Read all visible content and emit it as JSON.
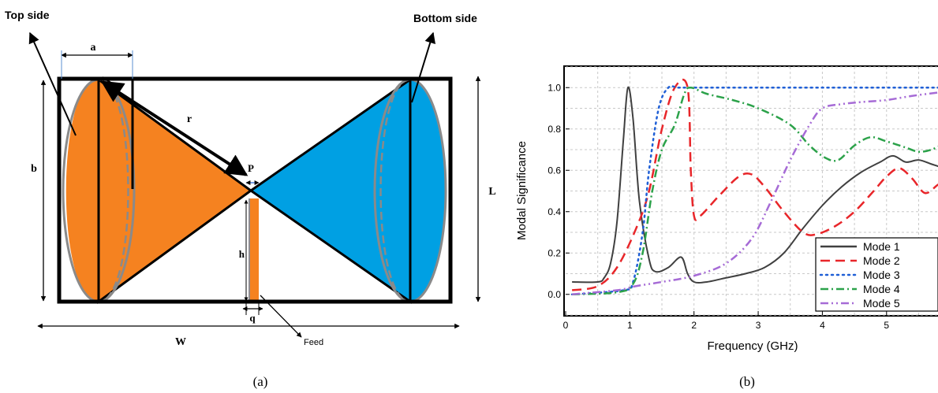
{
  "figure_a": {
    "caption": "(a)",
    "top_side_label": "Top side",
    "bottom_side_label": "Bottom side",
    "dim_a": "a",
    "dim_b": "b",
    "dim_r": "r",
    "dim_p": "P",
    "dim_h": "h",
    "dim_q": "q",
    "dim_L": "L",
    "dim_W": "W",
    "feed_label": "Feed",
    "colors": {
      "top_patch": "#f58220",
      "bottom_patch": "#00a0e3",
      "outline": "#000000",
      "dash": "#8a8a8a"
    }
  },
  "figure_b": {
    "caption": "(b)",
    "chart_data": {
      "type": "line",
      "title": "",
      "xlabel": "Frequency (GHz)",
      "ylabel": "Modal Significance",
      "xlim": [
        0,
        5.9
      ],
      "ylim": [
        -0.1,
        1.1
      ],
      "xticks": [
        0,
        1,
        2,
        3,
        4,
        5
      ],
      "yticks": [
        0.0,
        0.2,
        0.4,
        0.6,
        0.8,
        1.0
      ],
      "ytick_labels": [
        "0.0",
        "0.2",
        "0.4",
        "0.6",
        "0.8",
        "1.0"
      ],
      "grid": true,
      "legend": "bottom-right",
      "series": [
        {
          "name": "Mode 1",
          "color": "#404040",
          "dash": "solid",
          "x": [
            0.1,
            0.5,
            0.6,
            0.7,
            0.8,
            0.9,
            0.97,
            1.05,
            1.15,
            1.3,
            1.4,
            1.6,
            1.8,
            1.9,
            2.0,
            2.2,
            2.5,
            2.8,
            3.1,
            3.4,
            3.7,
            4.0,
            4.3,
            4.6,
            4.9,
            5.1,
            5.3,
            5.5,
            5.7,
            5.9
          ],
          "y": [
            0.06,
            0.06,
            0.08,
            0.15,
            0.35,
            0.75,
            1.0,
            0.85,
            0.45,
            0.17,
            0.11,
            0.13,
            0.18,
            0.1,
            0.06,
            0.06,
            0.08,
            0.1,
            0.13,
            0.2,
            0.32,
            0.43,
            0.52,
            0.59,
            0.64,
            0.67,
            0.64,
            0.65,
            0.63,
            0.61
          ]
        },
        {
          "name": "Mode 2",
          "color": "#e8262a",
          "dash": "long-dash",
          "x": [
            0.1,
            0.5,
            0.8,
            1.1,
            1.3,
            1.5,
            1.7,
            1.9,
            1.95,
            2.0,
            2.1,
            2.4,
            2.7,
            2.9,
            3.1,
            3.4,
            3.7,
            3.9,
            4.2,
            4.5,
            4.8,
            5.0,
            5.2,
            5.4,
            5.6,
            5.8,
            5.9
          ],
          "y": [
            0.02,
            0.04,
            0.13,
            0.32,
            0.5,
            0.8,
            1.0,
            1.0,
            0.6,
            0.38,
            0.38,
            0.48,
            0.57,
            0.58,
            0.52,
            0.4,
            0.3,
            0.29,
            0.33,
            0.4,
            0.5,
            0.57,
            0.61,
            0.56,
            0.49,
            0.53,
            0.54
          ]
        },
        {
          "name": "Mode 3",
          "color": "#1f5fd6",
          "dash": "dot",
          "x": [
            0.1,
            0.9,
            1.05,
            1.2,
            1.3,
            1.45,
            1.6,
            1.75,
            2.0,
            3.0,
            4.0,
            5.0,
            5.9
          ],
          "y": [
            0.0,
            0.02,
            0.06,
            0.3,
            0.6,
            0.9,
            1.0,
            1.0,
            1.0,
            1.0,
            1.0,
            1.0,
            1.0
          ]
        },
        {
          "name": "Mode 4",
          "color": "#2ca24a",
          "dash": "dash-dot",
          "x": [
            0.1,
            0.8,
            1.05,
            1.2,
            1.35,
            1.5,
            1.7,
            1.85,
            1.95,
            2.2,
            2.6,
            3.0,
            3.5,
            3.8,
            4.05,
            4.25,
            4.5,
            4.75,
            5.0,
            5.3,
            5.5,
            5.7,
            5.9
          ],
          "y": [
            0.0,
            0.01,
            0.05,
            0.2,
            0.5,
            0.7,
            0.82,
            0.97,
            1.0,
            0.97,
            0.94,
            0.9,
            0.82,
            0.72,
            0.66,
            0.65,
            0.72,
            0.76,
            0.74,
            0.71,
            0.69,
            0.7,
            0.73
          ]
        },
        {
          "name": "Mode 5",
          "color": "#a66bd6",
          "dash": "dash-dot-dot",
          "x": [
            0.1,
            0.8,
            1.1,
            1.5,
            2.0,
            2.5,
            2.9,
            3.2,
            3.5,
            3.8,
            4.0,
            4.3,
            4.6,
            5.0,
            5.4,
            5.9
          ],
          "y": [
            0.0,
            0.02,
            0.04,
            0.06,
            0.09,
            0.15,
            0.27,
            0.45,
            0.65,
            0.82,
            0.9,
            0.92,
            0.93,
            0.94,
            0.96,
            0.98
          ]
        }
      ]
    }
  }
}
